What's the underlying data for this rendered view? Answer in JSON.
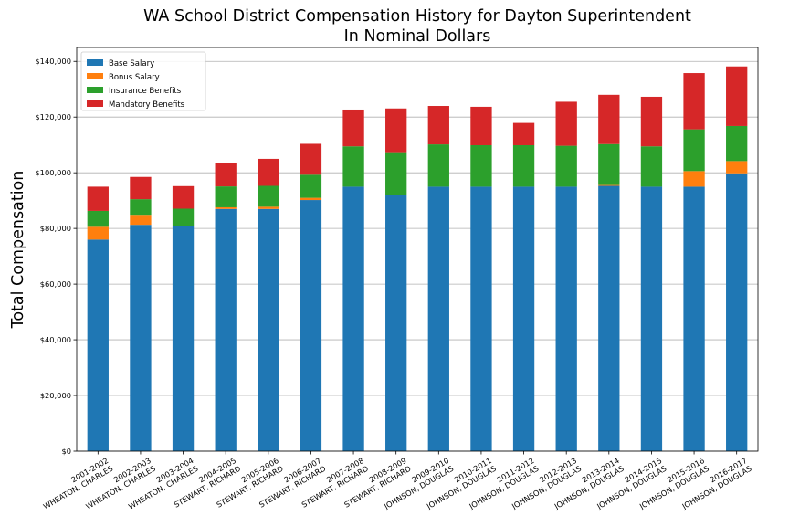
{
  "chart_data": {
    "type": "bar",
    "stacked": true,
    "title": [
      "WA School District Compensation History for Dayton Superintendent",
      "In Nominal Dollars"
    ],
    "xlabel": "",
    "ylabel": "Total Compensation",
    "ylim": [
      0,
      145000
    ],
    "yticks": [
      0,
      20000,
      40000,
      60000,
      80000,
      100000,
      120000,
      140000
    ],
    "ytick_labels": [
      "$0",
      "$20,000",
      "$40,000",
      "$60,000",
      "$80,000",
      "$100,000",
      "$120,000",
      "$140,000"
    ],
    "grid": "horizontal",
    "legend_placement": "top-left",
    "categories": [
      [
        "2001-2002",
        "WHEATON, CHARLES"
      ],
      [
        "2002-2003",
        "WHEATON, CHARLES"
      ],
      [
        "2003-2004",
        "WHEATON, CHARLES"
      ],
      [
        "2004-2005",
        "STEWART, RICHARD"
      ],
      [
        "2005-2006",
        "STEWART, RICHARD"
      ],
      [
        "2006-2007",
        "STEWART, RICHARD"
      ],
      [
        "2007-2008",
        "STEWART, RICHARD"
      ],
      [
        "2008-2009",
        "STEWART, RICHARD"
      ],
      [
        "2009-2010",
        "JOHNSON, DOUGLAS"
      ],
      [
        "2010-2011",
        "JOHNSON, DOUGLAS"
      ],
      [
        "2011-2012",
        "JOHNSON, DOUGLAS"
      ],
      [
        "2012-2013",
        "JOHNSON, DOUGLAS"
      ],
      [
        "2013-2014",
        "JOHNSON, DOUGLAS"
      ],
      [
        "2014-2015",
        "JOHNSON, DOUGLAS"
      ],
      [
        "2015-2016",
        "JOHNSON, DOUGLAS"
      ],
      [
        "2016-2017",
        "JOHNSON, DOUGLAS"
      ]
    ],
    "series": [
      {
        "name": "Base Salary",
        "color": "#1f77b4",
        "values": [
          76000,
          81300,
          80700,
          87000,
          87000,
          90200,
          95000,
          92000,
          95000,
          95000,
          95000,
          95000,
          95300,
          95000,
          95000,
          99800
        ]
      },
      {
        "name": "Bonus Salary",
        "color": "#ff7f0e",
        "values": [
          4600,
          3600,
          0,
          600,
          800,
          800,
          0,
          0,
          0,
          0,
          0,
          0,
          300,
          0,
          5600,
          4400
        ]
      },
      {
        "name": "Insurance Benefits",
        "color": "#2ca02c",
        "values": [
          5700,
          5600,
          6400,
          7500,
          7500,
          8300,
          14500,
          15400,
          15200,
          14900,
          14900,
          14700,
          14700,
          14500,
          15000,
          12600
        ]
      },
      {
        "name": "Mandatory Benefits",
        "color": "#d62728",
        "values": [
          8700,
          8000,
          8100,
          8400,
          9700,
          11100,
          13200,
          15700,
          13800,
          13800,
          8000,
          15800,
          17700,
          17800,
          20200,
          21400
        ]
      }
    ]
  }
}
